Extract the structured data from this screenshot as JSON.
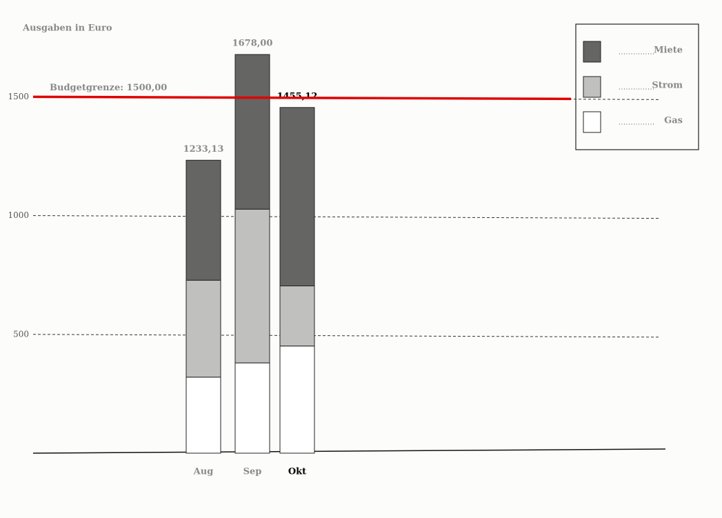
{
  "chart_data": {
    "type": "stacked-bar",
    "title": "Ausgaben in Euro",
    "categories": [
      "Aug",
      "Sep",
      "Okt"
    ],
    "series": [
      {
        "name": "Gas",
        "color": "#ffffff",
        "values": [
          320,
          380,
          451
        ]
      },
      {
        "name": "Strom",
        "color": "#c0c1be",
        "values": [
          408,
          647,
          253
        ]
      },
      {
        "name": "Miete",
        "color": "#656563",
        "values": [
          505,
          651,
          751
        ]
      }
    ],
    "totals": {
      "values": [
        1233.13,
        1678,
        1455.12
      ],
      "value_labels": [
        "1233,13",
        "1678,00",
        "1455,12"
      ]
    },
    "budget": {
      "value": 1500,
      "label": "Budgetgrenze: 1500,00",
      "color": "#e00000"
    },
    "highlight_index": 2,
    "ylim": [
      0,
      1800
    ],
    "yticks": [
      500,
      1000,
      1500
    ],
    "grid": true,
    "legend": "top-right"
  }
}
